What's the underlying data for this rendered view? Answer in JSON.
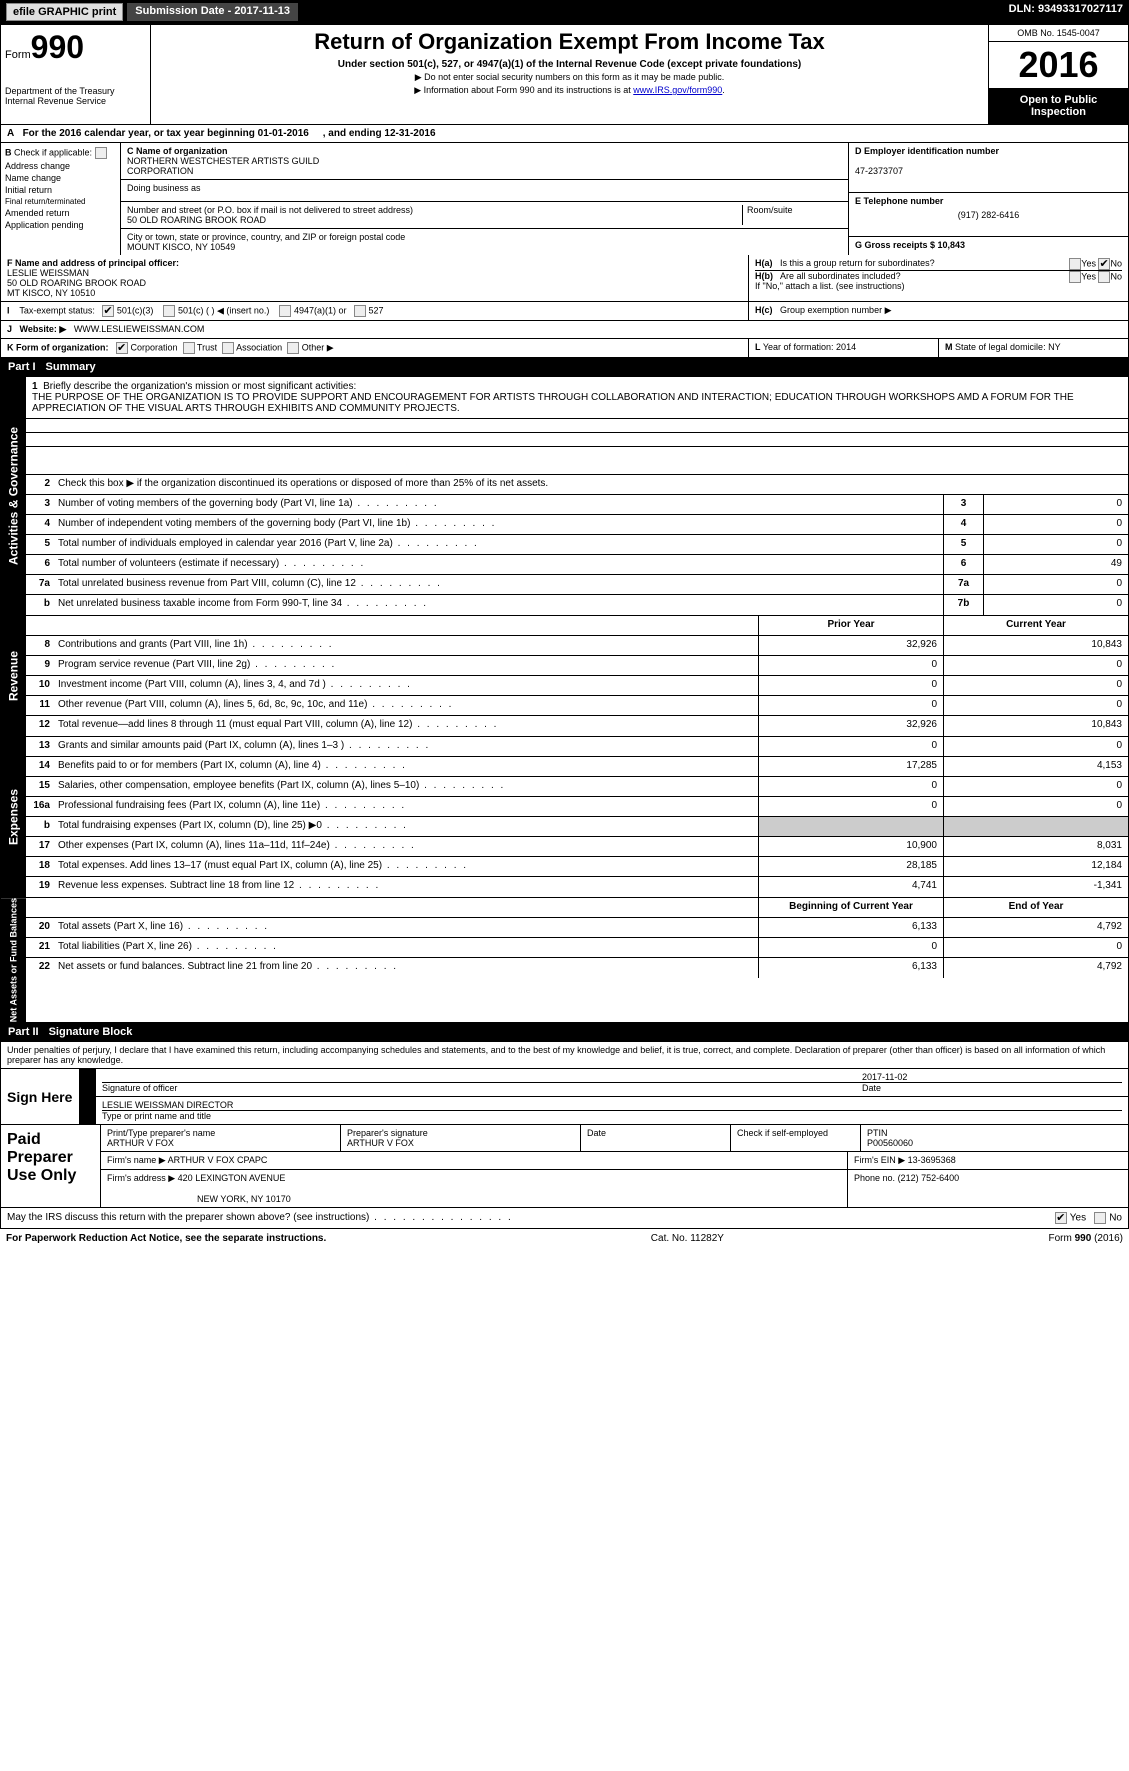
{
  "header_bar": {
    "efile": "efile GRAPHIC print",
    "sub_date_lbl": "Submission Date - 2017-11-13",
    "dln": "DLN: 93493317027117"
  },
  "top": {
    "form_lbl": "Form",
    "form_num": "990",
    "dept1": "Department of the Treasury",
    "dept2": "Internal Revenue Service",
    "title": "Return of Organization Exempt From Income Tax",
    "sub": "Under section 501(c), 527, or 4947(a)(1) of the Internal Revenue Code (except private foundations)",
    "note1": "▶ Do not enter social security numbers on this form as it may be made public.",
    "note2": "▶ Information about Form 990 and its instructions is at ",
    "link": "www.IRS.gov/form990",
    "omb": "OMB No. 1545-0047",
    "year": "2016",
    "open_pub": "Open to Public Inspection"
  },
  "rowA": {
    "prefix": "A",
    "text": "For the 2016 calendar year, or tax year beginning 01-01-2016",
    "ending": ", and ending 12-31-2016"
  },
  "colB": {
    "prefix": "B",
    "lbl": "Check if applicable:",
    "opts": [
      "Address change",
      "Name change",
      "Initial return",
      "Final return/terminated",
      "Amended return",
      "Application pending"
    ]
  },
  "colC": {
    "name_lbl": "C Name of organization",
    "name1": "NORTHERN WESTCHESTER ARTISTS GUILD",
    "name2": "CORPORATION",
    "dba_lbl": "Doing business as",
    "street_lbl": "Number and street (or P.O. box if mail is not delivered to street address)",
    "room_lbl": "Room/suite",
    "street": "50 OLD ROARING BROOK ROAD",
    "city_lbl": "City or town, state or province, country, and ZIP or foreign postal code",
    "city": "MOUNT KISCO, NY  10549"
  },
  "colD": {
    "ein_lbl": "D Employer identification number",
    "ein": "47-2373707",
    "phone_lbl": "E Telephone number",
    "phone": "(917) 282-6416",
    "gross_lbl": "G Gross receipts $ 10,843"
  },
  "rowF": {
    "lbl": "F  Name and address of principal officer:",
    "name": "LESLIE WEISSMAN",
    "addr1": "50 OLD ROARING BROOK ROAD",
    "addr2": "MT KISCO, NY  10510"
  },
  "rowH": {
    "ha": "H(a)",
    "ha_txt": "Is this a group return for subordinates?",
    "hb": "H(b)",
    "hb_txt": "Are all subordinates included?",
    "hb_note": "If \"No,\" attach a list. (see instructions)",
    "hc": "H(c)",
    "hc_txt": "Group exemption number ▶",
    "yes": "Yes",
    "no": "No"
  },
  "rowI": {
    "lbl": "I",
    "txt": "Tax-exempt status:",
    "o1": "501(c)(3)",
    "o2": "501(c) (   ) ◀ (insert no.)",
    "o3": "4947(a)(1) or",
    "o4": "527"
  },
  "rowJ": {
    "lbl": "J",
    "txt": "Website: ▶",
    "val": "WWW.LESLIEWEISSMAN.COM"
  },
  "rowK": {
    "lbl": "K Form of organization:",
    "o1": "Corporation",
    "o2": "Trust",
    "o3": "Association",
    "o4": "Other ▶"
  },
  "rowL": {
    "lbl": "L",
    "txt": "Year of formation: 2014"
  },
  "rowM": {
    "lbl": "M",
    "txt": "State of legal domicile: NY"
  },
  "part1": {
    "hdr": "Part I",
    "title": "Summary",
    "l1_lbl": "1",
    "l1_txt": "Briefly describe the organization's mission or most significant activities:",
    "mission": "THE PURPOSE OF THE ORGANIZATION IS TO PROVIDE SUPPORT AND ENCOURAGEMENT FOR ARTISTS THROUGH COLLABORATION AND INTERACTION; EDUCATION THROUGH WORKSHOPS AMD A FORUM FOR THE APPRECIATION OF THE VISUAL ARTS THROUGH EXHIBITS AND COMMUNITY PROJECTS.",
    "l2": "Check this box ▶        if the organization discontinued its operations or disposed of more than 25% of its net assets.",
    "py": "Prior Year",
    "cy": "Current Year",
    "bcy": "Beginning of Current Year",
    "ey": "End of Year"
  },
  "gov_lines": [
    {
      "n": "3",
      "d": "Number of voting members of the governing body (Part VI, line 1a)",
      "sm": "3",
      "v": "0"
    },
    {
      "n": "4",
      "d": "Number of independent voting members of the governing body (Part VI, line 1b)",
      "sm": "4",
      "v": "0"
    },
    {
      "n": "5",
      "d": "Total number of individuals employed in calendar year 2016 (Part V, line 2a)",
      "sm": "5",
      "v": "0"
    },
    {
      "n": "6",
      "d": "Total number of volunteers (estimate if necessary)",
      "sm": "6",
      "v": "49"
    },
    {
      "n": "7a",
      "d": "Total unrelated business revenue from Part VIII, column (C), line 12",
      "sm": "7a",
      "v": "0"
    },
    {
      "n": "b",
      "d": "Net unrelated business taxable income from Form 990-T, line 34",
      "sm": "7b",
      "v": "0"
    }
  ],
  "rev_lines": [
    {
      "n": "8",
      "d": "Contributions and grants (Part VIII, line 1h)",
      "py": "32,926",
      "cy": "10,843"
    },
    {
      "n": "9",
      "d": "Program service revenue (Part VIII, line 2g)",
      "py": "0",
      "cy": "0"
    },
    {
      "n": "10",
      "d": "Investment income (Part VIII, column (A), lines 3, 4, and 7d )",
      "py": "0",
      "cy": "0"
    },
    {
      "n": "11",
      "d": "Other revenue (Part VIII, column (A), lines 5, 6d, 8c, 9c, 10c, and 11e)",
      "py": "0",
      "cy": "0"
    },
    {
      "n": "12",
      "d": "Total revenue—add lines 8 through 11 (must equal Part VIII, column (A), line 12)",
      "py": "32,926",
      "cy": "10,843"
    }
  ],
  "exp_lines": [
    {
      "n": "13",
      "d": "Grants and similar amounts paid (Part IX, column (A), lines 1–3 )",
      "py": "0",
      "cy": "0"
    },
    {
      "n": "14",
      "d": "Benefits paid to or for members (Part IX, column (A), line 4)",
      "py": "17,285",
      "cy": "4,153"
    },
    {
      "n": "15",
      "d": "Salaries, other compensation, employee benefits (Part IX, column (A), lines 5–10)",
      "py": "0",
      "cy": "0"
    },
    {
      "n": "16a",
      "d": "Professional fundraising fees (Part IX, column (A), line 11e)",
      "py": "0",
      "cy": "0"
    },
    {
      "n": "b",
      "d": "Total fundraising expenses (Part IX, column (D), line 25) ▶0",
      "py": "",
      "cy": "",
      "shaded": true
    },
    {
      "n": "17",
      "d": "Other expenses (Part IX, column (A), lines 11a–11d, 11f–24e)",
      "py": "10,900",
      "cy": "8,031"
    },
    {
      "n": "18",
      "d": "Total expenses. Add lines 13–17 (must equal Part IX, column (A), line 25)",
      "py": "28,185",
      "cy": "12,184"
    },
    {
      "n": "19",
      "d": "Revenue less expenses. Subtract line 18 from line 12",
      "py": "4,741",
      "cy": "-1,341"
    }
  ],
  "net_lines": [
    {
      "n": "20",
      "d": "Total assets (Part X, line 16)",
      "py": "6,133",
      "cy": "4,792"
    },
    {
      "n": "21",
      "d": "Total liabilities (Part X, line 26)",
      "py": "0",
      "cy": "0"
    },
    {
      "n": "22",
      "d": "Net assets or fund balances. Subtract line 21 from line 20",
      "py": "6,133",
      "cy": "4,792"
    }
  ],
  "vtabs": {
    "gov": "Activities & Governance",
    "rev": "Revenue",
    "exp": "Expenses",
    "net": "Net Assets or Fund Balances"
  },
  "part2": {
    "hdr": "Part II",
    "title": "Signature Block",
    "intro": "Under penalties of perjury, I declare that I have examined this return, including accompanying schedules and statements, and to the best of my knowledge and belief, it is true, correct, and complete. Declaration of preparer (other than officer) is based on all information of which preparer has any knowledge.",
    "sign_here": "Sign Here",
    "sig_lbl": "Signature of officer",
    "date_lbl": "Date",
    "date_val": "2017-11-02",
    "name_val": "LESLIE WEISSMAN  DIRECTOR",
    "name_lbl": "Type or print name and title"
  },
  "prep": {
    "lbl": "Paid Preparer Use Only",
    "pname_lbl": "Print/Type preparer's name",
    "pname": "ARTHUR V FOX",
    "psig_lbl": "Preparer's signature",
    "psig": "ARTHUR V FOX",
    "pdate_lbl": "Date",
    "pchk_lbl": "Check          if self-employed",
    "ptin_lbl": "PTIN",
    "ptin": "P00560060",
    "firm_lbl": "Firm's name      ▶",
    "firm": "ARTHUR V FOX CPAPC",
    "ein_lbl": "Firm's EIN ▶",
    "ein": "13-3695368",
    "addr_lbl": "Firm's address ▶",
    "addr1": "420 LEXINGTON AVENUE",
    "addr2": "NEW YORK, NY  10170",
    "phone_lbl": "Phone no.",
    "phone": "(212) 752-6400"
  },
  "footer": {
    "discuss": "May the IRS discuss this return with the preparer shown above? (see instructions)",
    "yes": "Yes",
    "no": "No",
    "paperwork": "For Paperwork Reduction Act Notice, see the separate instructions.",
    "cat": "Cat. No. 11282Y",
    "form": "Form 990 (2016)"
  }
}
